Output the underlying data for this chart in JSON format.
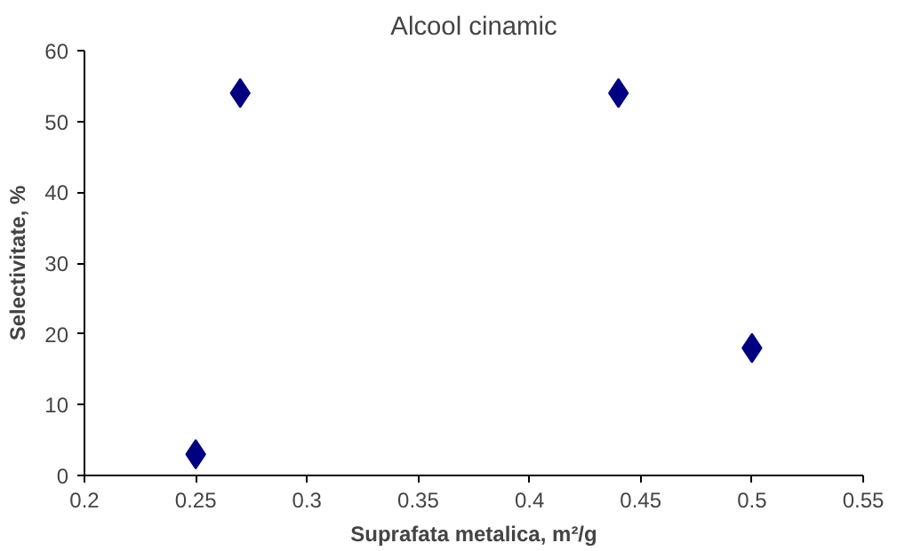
{
  "chart_data": {
    "type": "scatter",
    "title": "Alcool cinamic",
    "xlabel": "Suprafata metalica, m²/g",
    "ylabel": "Selectivitate, %",
    "x": [
      0.25,
      0.27,
      0.44,
      0.5
    ],
    "series": [
      {
        "color": "#000080",
        "values": [
          3,
          54,
          54,
          18
        ]
      }
    ],
    "xlim": [
      0.2,
      0.55
    ],
    "xticks": [
      0.2,
      0.25,
      0.3,
      0.35,
      0.4,
      0.45,
      0.5,
      0.55
    ],
    "ylim": [
      0,
      60
    ],
    "yticks": [
      0,
      10,
      20,
      30,
      40,
      50,
      60
    ],
    "grid": false,
    "marker": "diamond"
  }
}
